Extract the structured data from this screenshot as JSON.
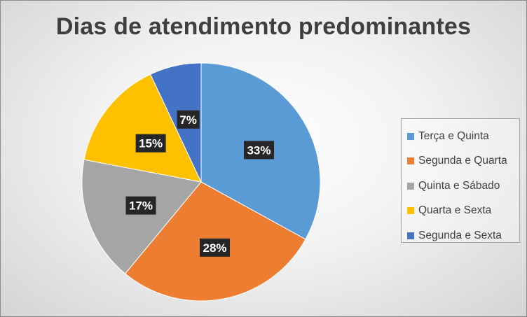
{
  "chart_data": {
    "type": "pie",
    "title": "Dias de atendimento predominantes",
    "categories": [
      "Terça e Quinta",
      "Segunda e Quarta",
      "Quinta e Sábado",
      "Quarta e Sexta",
      "Segunda e Sexta"
    ],
    "values": [
      33,
      28,
      17,
      15,
      7
    ],
    "value_labels": [
      "33%",
      "28%",
      "17%",
      "15%",
      "7%"
    ],
    "colors": [
      "#5b9bd5",
      "#ed7d31",
      "#a5a5a5",
      "#ffc000",
      "#4472c4"
    ],
    "legend_position": "right"
  }
}
